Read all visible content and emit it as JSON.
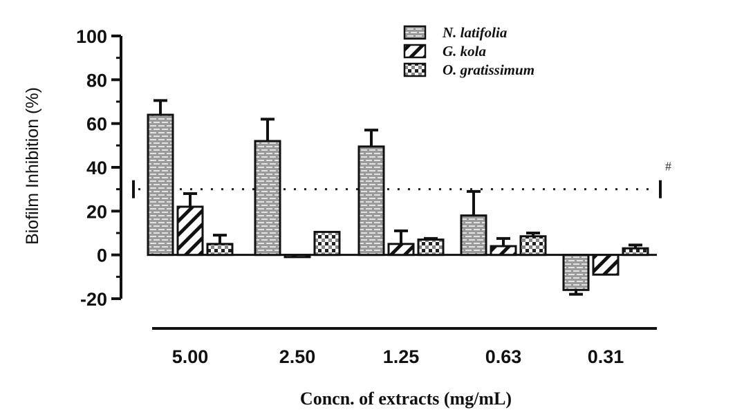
{
  "chart_data": {
    "type": "bar",
    "title": "",
    "xlabel": "Concn. of extracts (mg/mL)",
    "ylabel": "Biofilm Inhibition (%)",
    "ylim": [
      -20,
      100
    ],
    "yticks": [
      -20,
      0,
      20,
      40,
      60,
      80,
      100
    ],
    "categories": [
      "5.00",
      "2.50",
      "1.25",
      "0.63",
      "0.31"
    ],
    "series": [
      {
        "name": "N. latifolia",
        "pattern": "brick-gray",
        "values": [
          64,
          52,
          49.5,
          18,
          -16
        ],
        "error": [
          6.5,
          10,
          7.5,
          11,
          2
        ]
      },
      {
        "name": "G. kola",
        "pattern": "diagonal-stripes",
        "values": [
          22,
          -1,
          5,
          4,
          -9
        ],
        "error": [
          6,
          0,
          6,
          3.5,
          0
        ]
      },
      {
        "name": "O. gratissimum",
        "pattern": "checker",
        "values": [
          5,
          10.5,
          7,
          8.5,
          3
        ],
        "error": [
          4,
          0,
          0.5,
          1.5,
          1.5
        ]
      }
    ],
    "reference_line": {
      "value": 30,
      "style": "dotted",
      "annotation": "#"
    },
    "legend_position": "top-right",
    "grid": false,
    "colors": {
      "bar_fill": "#a9a9a9",
      "stroke": "#111111"
    }
  }
}
